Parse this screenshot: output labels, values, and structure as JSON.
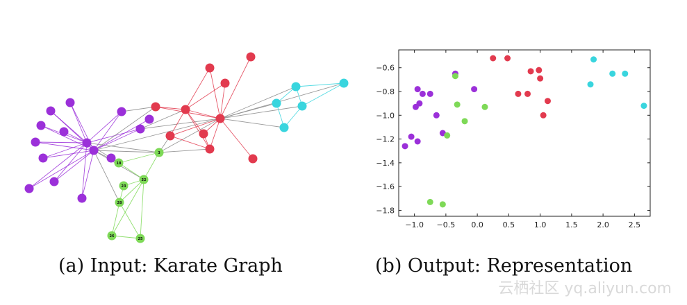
{
  "captions": {
    "a": "(a) Input: Karate Graph",
    "b": "(b) Output: Representation"
  },
  "watermark": "云栖社区 yq.aliyun.com",
  "colors": {
    "purple": "#9b30d9",
    "green": "#7ed957",
    "red": "#e23a4e",
    "cyan": "#39d5de"
  },
  "graph": {
    "nodes": [
      {
        "id": "n-p1",
        "label": "",
        "group": "purple"
      },
      {
        "id": "n-p2",
        "label": "",
        "group": "purple"
      },
      {
        "id": "n-p3",
        "label": "",
        "group": "purple"
      },
      {
        "id": "n-p4",
        "label": "",
        "group": "purple"
      },
      {
        "id": "n-p5",
        "label": "",
        "group": "purple"
      },
      {
        "id": "n-p6",
        "label": "",
        "group": "purple"
      },
      {
        "id": "n-p7",
        "label": "",
        "group": "purple"
      },
      {
        "id": "n-p8",
        "label": "",
        "group": "purple"
      },
      {
        "id": "n-p9",
        "label": "",
        "group": "purple"
      },
      {
        "id": "n-p10",
        "label": "",
        "group": "purple"
      },
      {
        "id": "n-p11",
        "label": "",
        "group": "purple"
      },
      {
        "id": "n-p12",
        "label": "",
        "group": "purple"
      },
      {
        "id": "n-p13",
        "label": "",
        "group": "purple"
      },
      {
        "id": "n-p14",
        "label": "",
        "group": "purple"
      },
      {
        "id": "n-p15",
        "label": "",
        "group": "purple"
      },
      {
        "id": "n-g1",
        "label": "18",
        "group": "green"
      },
      {
        "id": "n-g2",
        "label": "3",
        "group": "green"
      },
      {
        "id": "n-g3",
        "label": "32",
        "group": "green"
      },
      {
        "id": "n-g4",
        "label": "23",
        "group": "green"
      },
      {
        "id": "n-g5",
        "label": "28",
        "group": "green"
      },
      {
        "id": "n-g6",
        "label": "26",
        "group": "green"
      },
      {
        "id": "n-g7",
        "label": "25",
        "group": "green"
      },
      {
        "id": "n-r1",
        "label": "",
        "group": "red"
      },
      {
        "id": "n-r2",
        "label": "",
        "group": "red"
      },
      {
        "id": "n-r3",
        "label": "",
        "group": "red"
      },
      {
        "id": "n-r4",
        "label": "",
        "group": "red"
      },
      {
        "id": "n-r5",
        "label": "",
        "group": "red"
      },
      {
        "id": "n-r6",
        "label": "",
        "group": "red"
      },
      {
        "id": "n-r7",
        "label": "",
        "group": "red"
      },
      {
        "id": "n-r8",
        "label": "",
        "group": "red"
      },
      {
        "id": "n-r9",
        "label": "",
        "group": "red"
      },
      {
        "id": "n-r10",
        "label": "",
        "group": "red"
      },
      {
        "id": "n-c1",
        "label": "",
        "group": "cyan"
      },
      {
        "id": "n-c2",
        "label": "",
        "group": "cyan"
      },
      {
        "id": "n-c3",
        "label": "",
        "group": "cyan"
      },
      {
        "id": "n-c4",
        "label": "",
        "group": "cyan"
      },
      {
        "id": "n-c5",
        "label": "",
        "group": "cyan"
      }
    ]
  },
  "chart_data": {
    "type": "scatter",
    "xlim": [
      -1.25,
      2.75
    ],
    "ylim": [
      -1.85,
      -0.45
    ],
    "xticks": [
      -1.0,
      -0.5,
      0.0,
      0.5,
      1.0,
      1.5,
      2.0,
      2.5
    ],
    "xtick_labels": [
      "−1.0",
      "−0.5",
      "0.0",
      "0.5",
      "1.0",
      "1.5",
      "2.0",
      "2.5"
    ],
    "yticks": [
      -0.6,
      -0.8,
      -1.0,
      -1.2,
      -1.4,
      -1.6,
      -1.8
    ],
    "ytick_labels": [
      "−0.6",
      "−0.8",
      "−1.0",
      "−1.2",
      "−1.4",
      "−1.6",
      "−1.8"
    ],
    "grid": false,
    "series": [
      {
        "color": "purple",
        "points": [
          [
            -0.35,
            -0.65
          ],
          [
            -0.95,
            -0.78
          ],
          [
            -0.87,
            -0.82
          ],
          [
            -0.75,
            -0.82
          ],
          [
            -0.92,
            -0.9
          ],
          [
            -0.98,
            -0.93
          ],
          [
            -0.05,
            -0.78
          ],
          [
            -0.65,
            -1.0
          ],
          [
            -0.55,
            -1.15
          ],
          [
            -1.05,
            -1.18
          ],
          [
            -0.95,
            -1.22
          ],
          [
            -1.15,
            -1.26
          ]
        ]
      },
      {
        "color": "green",
        "points": [
          [
            -0.35,
            -0.67
          ],
          [
            -0.32,
            -0.91
          ],
          [
            0.12,
            -0.93
          ],
          [
            -0.2,
            -1.05
          ],
          [
            -0.48,
            -1.17
          ],
          [
            -0.75,
            -1.73
          ],
          [
            -0.55,
            -1.75
          ]
        ]
      },
      {
        "color": "red",
        "points": [
          [
            0.25,
            -0.52
          ],
          [
            0.48,
            -0.52
          ],
          [
            0.85,
            -0.63
          ],
          [
            0.98,
            -0.62
          ],
          [
            1.0,
            -0.69
          ],
          [
            0.65,
            -0.82
          ],
          [
            0.8,
            -0.82
          ],
          [
            1.12,
            -0.88
          ],
          [
            1.05,
            -1.0
          ]
        ]
      },
      {
        "color": "cyan",
        "points": [
          [
            1.85,
            -0.53
          ],
          [
            2.15,
            -0.65
          ],
          [
            2.35,
            -0.65
          ],
          [
            1.8,
            -0.74
          ],
          [
            2.65,
            -0.92
          ]
        ]
      }
    ]
  }
}
